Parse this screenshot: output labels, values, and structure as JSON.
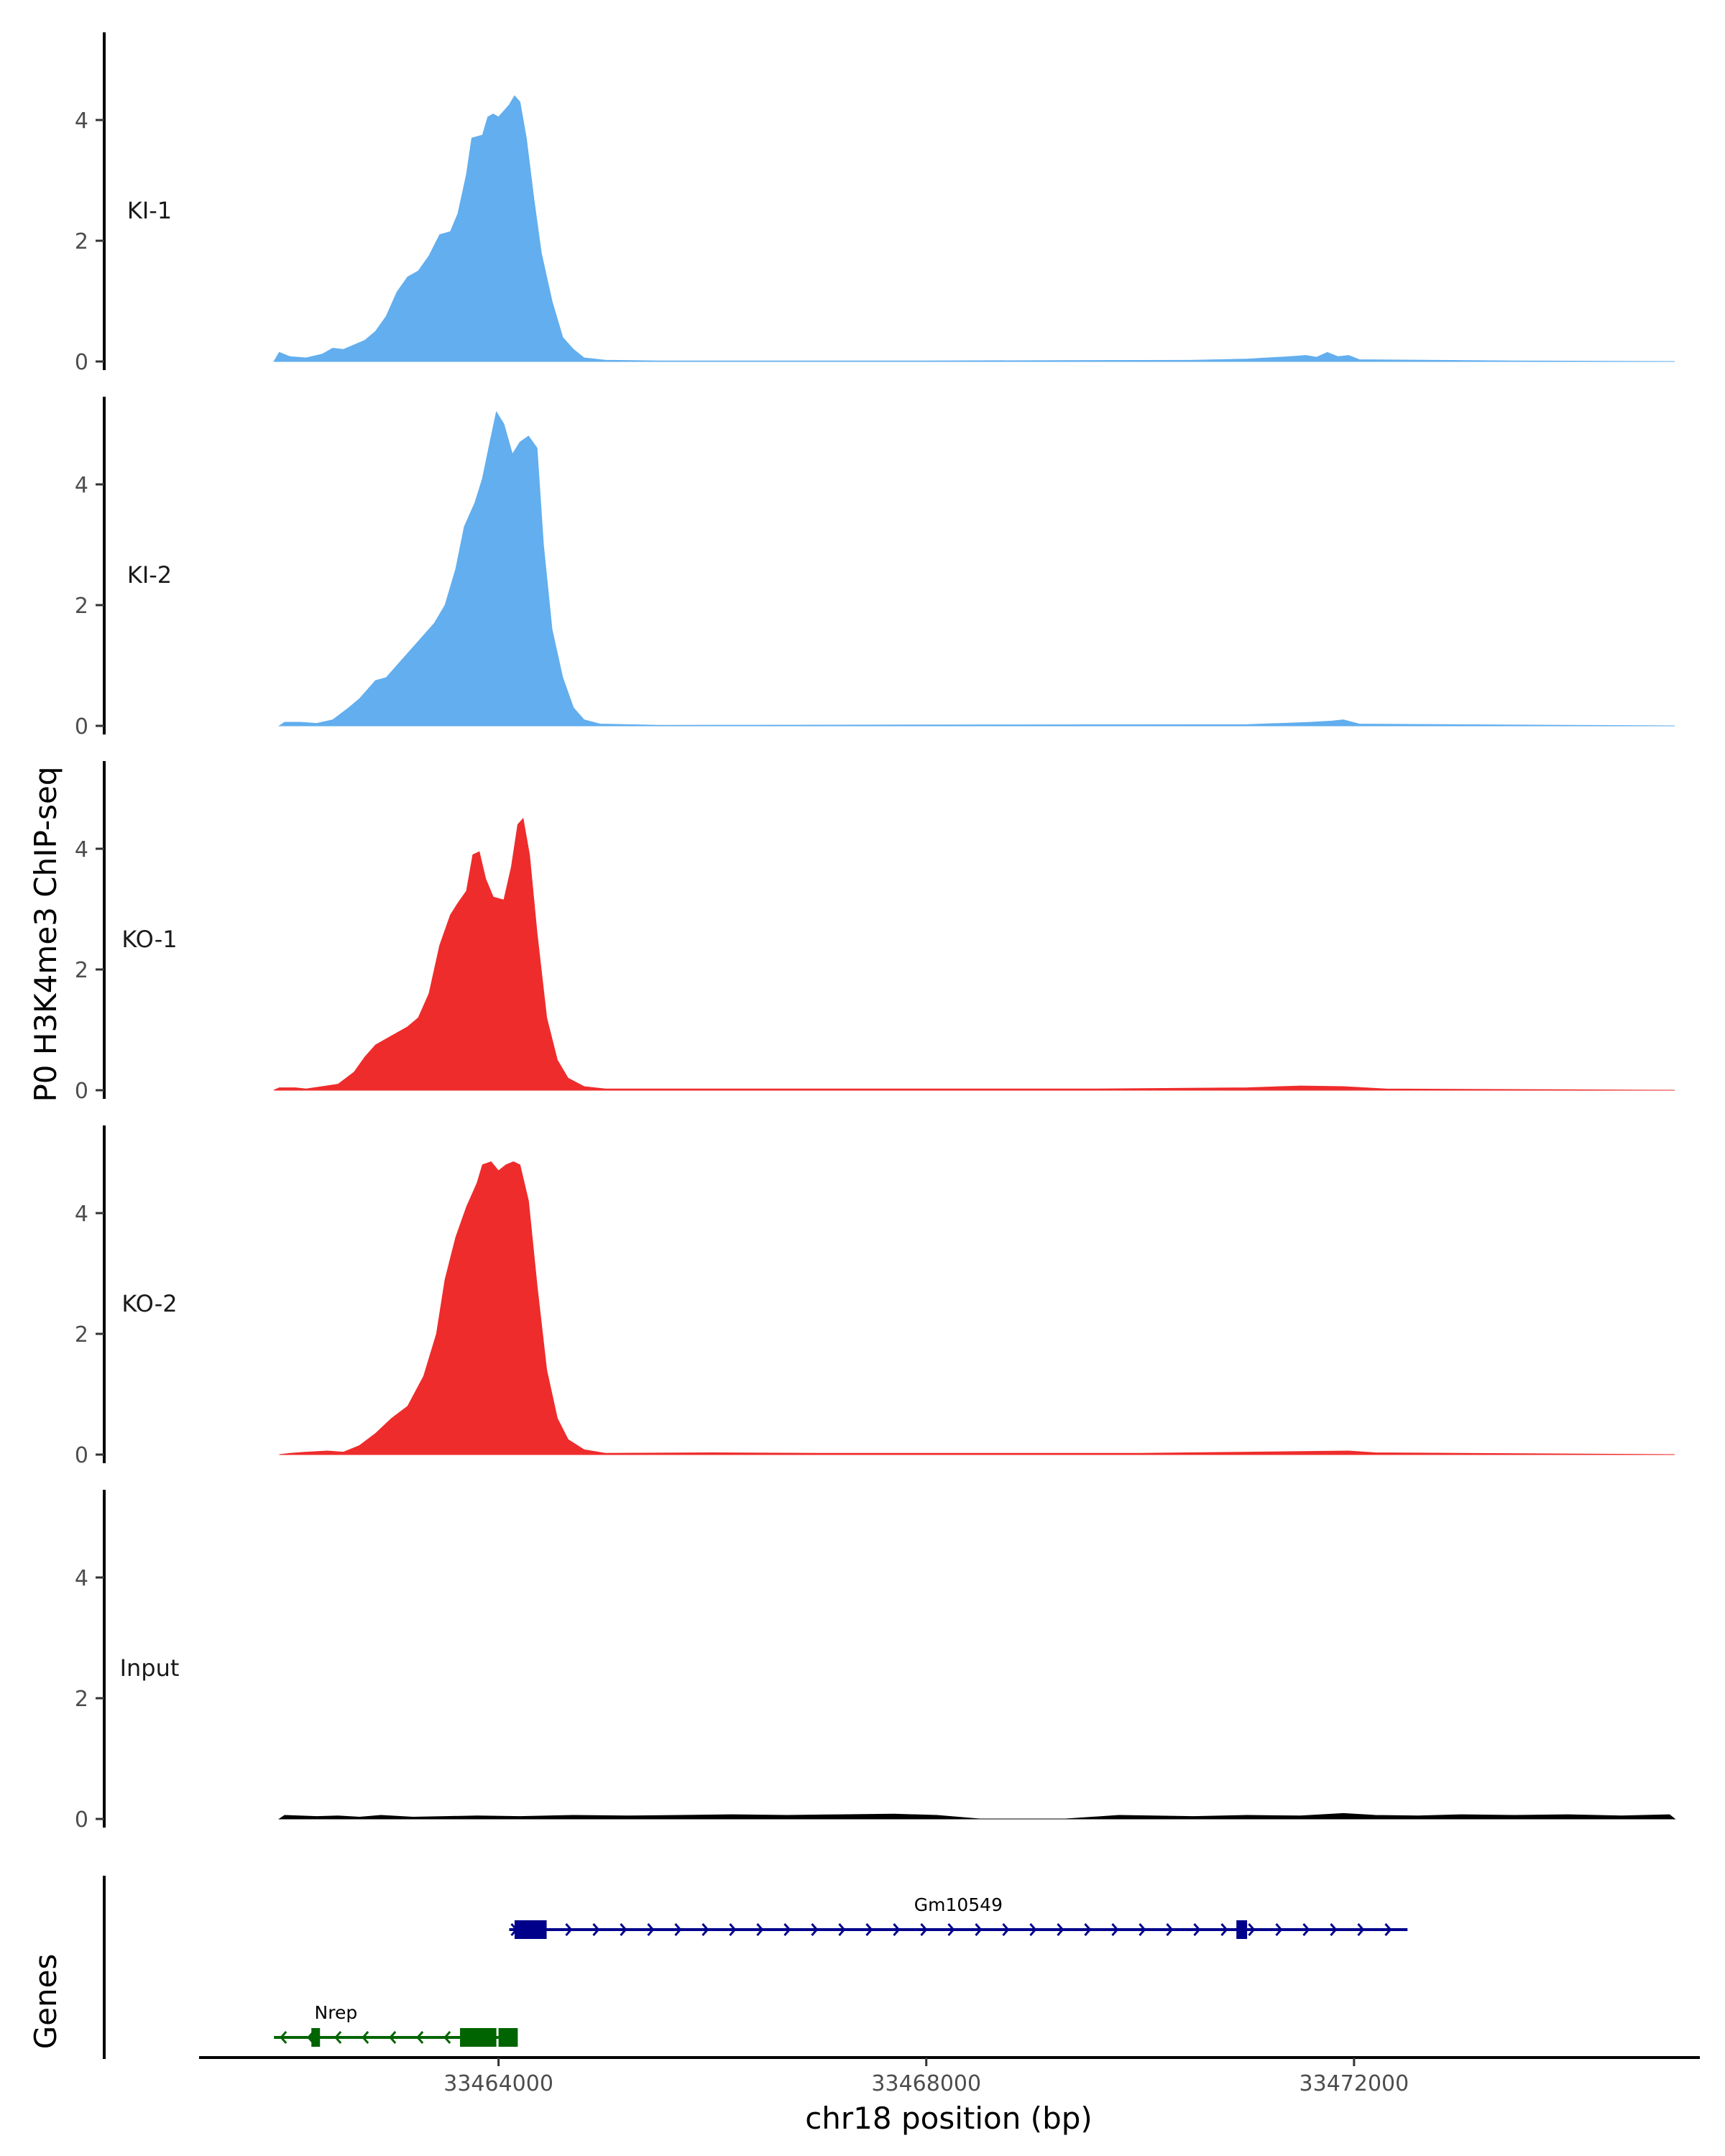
{
  "chart_data": {
    "type": "area",
    "title": "",
    "ylabel": "P0 H3K4me3 ChIP-seq",
    "xlabel": "chr18 position (bp)",
    "genes_track_label": "Genes",
    "xlim": [
      33461200,
      33475200
    ],
    "ylim": [
      0,
      5.5
    ],
    "x_ticks": [
      33464000,
      33468000,
      33472000
    ],
    "x_tick_labels": [
      "33464000",
      "33468000",
      "33472000"
    ],
    "y_ticks": [
      0,
      2,
      4
    ],
    "y_tick_labels": [
      "0",
      "2",
      "4"
    ],
    "tracks": [
      {
        "name": "KI-1",
        "color": "#62AEEE",
        "points": [
          [
            33461900,
            0.0
          ],
          [
            33461950,
            0.15
          ],
          [
            33462050,
            0.08
          ],
          [
            33462200,
            0.06
          ],
          [
            33462350,
            0.12
          ],
          [
            33462450,
            0.22
          ],
          [
            33462550,
            0.2
          ],
          [
            33462750,
            0.35
          ],
          [
            33462850,
            0.5
          ],
          [
            33462950,
            0.75
          ],
          [
            33463050,
            1.15
          ],
          [
            33463150,
            1.4
          ],
          [
            33463250,
            1.5
          ],
          [
            33463350,
            1.75
          ],
          [
            33463450,
            2.1
          ],
          [
            33463550,
            2.15
          ],
          [
            33463620,
            2.45
          ],
          [
            33463700,
            3.1
          ],
          [
            33463750,
            3.7
          ],
          [
            33463850,
            3.75
          ],
          [
            33463900,
            4.05
          ],
          [
            33463950,
            4.1
          ],
          [
            33464000,
            4.05
          ],
          [
            33464050,
            4.15
          ],
          [
            33464100,
            4.25
          ],
          [
            33464150,
            4.4
          ],
          [
            33464200,
            4.3
          ],
          [
            33464260,
            3.7
          ],
          [
            33464330,
            2.7
          ],
          [
            33464400,
            1.8
          ],
          [
            33464500,
            1.0
          ],
          [
            33464600,
            0.4
          ],
          [
            33464700,
            0.2
          ],
          [
            33464800,
            0.06
          ],
          [
            33465000,
            0.02
          ],
          [
            33465500,
            0.01
          ],
          [
            33468000,
            0.01
          ],
          [
            33470500,
            0.02
          ],
          [
            33471000,
            0.04
          ],
          [
            33471400,
            0.08
          ],
          [
            33471550,
            0.1
          ],
          [
            33471650,
            0.07
          ],
          [
            33471750,
            0.15
          ],
          [
            33471850,
            0.08
          ],
          [
            33471950,
            0.1
          ],
          [
            33472050,
            0.03
          ],
          [
            33473500,
            0.01
          ],
          [
            33475000,
            0.0
          ]
        ]
      },
      {
        "name": "KI-2",
        "color": "#62AEEE",
        "points": [
          [
            33461950,
            0.0
          ],
          [
            33462000,
            0.06
          ],
          [
            33462150,
            0.06
          ],
          [
            33462300,
            0.04
          ],
          [
            33462450,
            0.1
          ],
          [
            33462600,
            0.3
          ],
          [
            33462700,
            0.45
          ],
          [
            33462850,
            0.75
          ],
          [
            33462950,
            0.8
          ],
          [
            33463050,
            1.0
          ],
          [
            33463150,
            1.2
          ],
          [
            33463250,
            1.4
          ],
          [
            33463400,
            1.7
          ],
          [
            33463500,
            2.0
          ],
          [
            33463600,
            2.6
          ],
          [
            33463680,
            3.3
          ],
          [
            33463780,
            3.7
          ],
          [
            33463850,
            4.1
          ],
          [
            33463920,
            4.7
          ],
          [
            33463980,
            5.2
          ],
          [
            33464050,
            5.0
          ],
          [
            33464130,
            4.5
          ],
          [
            33464200,
            4.7
          ],
          [
            33464280,
            4.8
          ],
          [
            33464360,
            4.6
          ],
          [
            33464420,
            3.0
          ],
          [
            33464500,
            1.6
          ],
          [
            33464600,
            0.8
          ],
          [
            33464700,
            0.3
          ],
          [
            33464800,
            0.1
          ],
          [
            33464950,
            0.03
          ],
          [
            33465500,
            0.01
          ],
          [
            33471000,
            0.02
          ],
          [
            33471600,
            0.06
          ],
          [
            33471800,
            0.08
          ],
          [
            33471900,
            0.1
          ],
          [
            33472050,
            0.03
          ],
          [
            33474000,
            0.01
          ],
          [
            33475000,
            0.0
          ]
        ]
      },
      {
        "name": "KO-1",
        "color": "#EE2C2C",
        "points": [
          [
            33461900,
            0.0
          ],
          [
            33461950,
            0.04
          ],
          [
            33462100,
            0.04
          ],
          [
            33462200,
            0.02
          ],
          [
            33462350,
            0.06
          ],
          [
            33462500,
            0.1
          ],
          [
            33462650,
            0.3
          ],
          [
            33462750,
            0.55
          ],
          [
            33462850,
            0.75
          ],
          [
            33462950,
            0.85
          ],
          [
            33463050,
            0.95
          ],
          [
            33463150,
            1.05
          ],
          [
            33463250,
            1.2
          ],
          [
            33463350,
            1.6
          ],
          [
            33463450,
            2.4
          ],
          [
            33463550,
            2.9
          ],
          [
            33463620,
            3.1
          ],
          [
            33463700,
            3.3
          ],
          [
            33463760,
            3.9
          ],
          [
            33463820,
            3.95
          ],
          [
            33463880,
            3.5
          ],
          [
            33463950,
            3.2
          ],
          [
            33464050,
            3.15
          ],
          [
            33464120,
            3.7
          ],
          [
            33464180,
            4.4
          ],
          [
            33464230,
            4.5
          ],
          [
            33464290,
            3.9
          ],
          [
            33464360,
            2.6
          ],
          [
            33464450,
            1.2
          ],
          [
            33464550,
            0.5
          ],
          [
            33464650,
            0.2
          ],
          [
            33464800,
            0.06
          ],
          [
            33465000,
            0.02
          ],
          [
            33467000,
            0.02
          ],
          [
            33469500,
            0.02
          ],
          [
            33471000,
            0.04
          ],
          [
            33471500,
            0.07
          ],
          [
            33471900,
            0.06
          ],
          [
            33472300,
            0.02
          ],
          [
            33475000,
            0.0
          ]
        ]
      },
      {
        "name": "KO-2",
        "color": "#EE2C2C",
        "points": [
          [
            33461950,
            0.0
          ],
          [
            33462050,
            0.02
          ],
          [
            33462200,
            0.04
          ],
          [
            33462400,
            0.06
          ],
          [
            33462550,
            0.04
          ],
          [
            33462700,
            0.15
          ],
          [
            33462850,
            0.35
          ],
          [
            33463000,
            0.6
          ],
          [
            33463150,
            0.8
          ],
          [
            33463300,
            1.3
          ],
          [
            33463420,
            2.0
          ],
          [
            33463500,
            2.9
          ],
          [
            33463600,
            3.6
          ],
          [
            33463700,
            4.1
          ],
          [
            33463800,
            4.5
          ],
          [
            33463850,
            4.8
          ],
          [
            33463930,
            4.85
          ],
          [
            33464000,
            4.7
          ],
          [
            33464070,
            4.8
          ],
          [
            33464140,
            4.85
          ],
          [
            33464200,
            4.8
          ],
          [
            33464280,
            4.2
          ],
          [
            33464360,
            2.8
          ],
          [
            33464450,
            1.4
          ],
          [
            33464550,
            0.6
          ],
          [
            33464650,
            0.25
          ],
          [
            33464800,
            0.08
          ],
          [
            33465000,
            0.02
          ],
          [
            33466000,
            0.03
          ],
          [
            33467000,
            0.02
          ],
          [
            33470000,
            0.02
          ],
          [
            33471000,
            0.04
          ],
          [
            33471500,
            0.05
          ],
          [
            33471950,
            0.06
          ],
          [
            33472200,
            0.03
          ],
          [
            33475000,
            0.0
          ]
        ]
      },
      {
        "name": "Input",
        "color": "#000000",
        "points": [
          [
            33461950,
            0.0
          ],
          [
            33462000,
            0.06
          ],
          [
            33462300,
            0.04
          ],
          [
            33462500,
            0.05
          ],
          [
            33462700,
            0.03
          ],
          [
            33462900,
            0.06
          ],
          [
            33463200,
            0.03
          ],
          [
            33463500,
            0.04
          ],
          [
            33463800,
            0.05
          ],
          [
            33464200,
            0.04
          ],
          [
            33464700,
            0.06
          ],
          [
            33465200,
            0.05
          ],
          [
            33465700,
            0.06
          ],
          [
            33466200,
            0.07
          ],
          [
            33466700,
            0.06
          ],
          [
            33467200,
            0.07
          ],
          [
            33467700,
            0.08
          ],
          [
            33468100,
            0.06
          ],
          [
            33468500,
            0.0
          ],
          [
            33469300,
            0.0
          ],
          [
            33469800,
            0.06
          ],
          [
            33470500,
            0.04
          ],
          [
            33471000,
            0.06
          ],
          [
            33471500,
            0.05
          ],
          [
            33471900,
            0.09
          ],
          [
            33472200,
            0.06
          ],
          [
            33472600,
            0.05
          ],
          [
            33473000,
            0.07
          ],
          [
            33473500,
            0.06
          ],
          [
            33474000,
            0.07
          ],
          [
            33474500,
            0.05
          ],
          [
            33474950,
            0.07
          ],
          [
            33475000,
            0.0
          ]
        ]
      }
    ],
    "genes": [
      {
        "name": "Gm10549",
        "color": "#00008B",
        "strand": "+",
        "start": 33464100,
        "end": 33472500,
        "exons": [
          [
            33464150,
            33464450
          ],
          [
            33470900,
            33471000
          ]
        ]
      },
      {
        "name": "Nrep",
        "color": "#006400",
        "strand": "-",
        "start": 33461900,
        "end": 33464000,
        "exons": [
          [
            33462250,
            33462310
          ],
          [
            33463640,
            33463980
          ],
          [
            33464000,
            33464180
          ]
        ]
      }
    ]
  }
}
